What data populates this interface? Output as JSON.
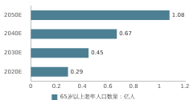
{
  "chart_data": {
    "type": "bar",
    "orientation": "horizontal",
    "categories": [
      "2050E",
      "2040E",
      "2030E",
      "2020E"
    ],
    "series": [
      {
        "name": "65岁以上老年人口数量：亿人",
        "color": "#4d7f93",
        "values": [
          1.08,
          0.67,
          0.45,
          0.29
        ]
      }
    ],
    "xlim": [
      0,
      1.2
    ],
    "xticks": [
      0,
      0.2,
      0.4,
      0.6,
      0.8,
      1,
      1.2
    ],
    "grid": false,
    "legend": "bottom",
    "data_labels": true
  }
}
